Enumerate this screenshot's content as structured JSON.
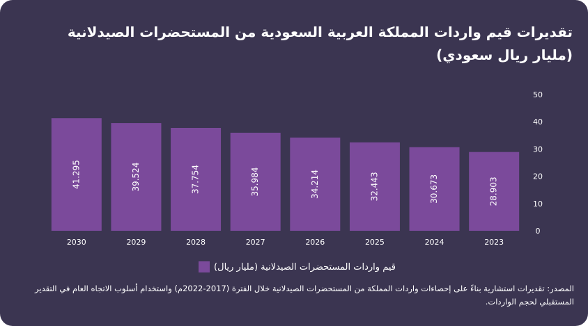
{
  "title": "تقديرات قيم واردات المملكة العربية السعودية من المستحضرات الصيدلانية (مليار ريال سعودي)",
  "source_note": "المصدر: تقديرات استشارية بناءً على إحصاءات واردات المملكة من المستحضرات الصيدلانية خلال الفترة (2017-2022م) واستخدام أسلوب الاتجاه العام في التقدير المستقبلي لحجم الواردات.",
  "colors": {
    "background": "#3b3551",
    "bar": "#7b4a9b",
    "text": "#ffffff"
  },
  "chart_data": {
    "type": "bar",
    "title": "تقديرات قيم واردات المملكة العربية السعودية من المستحضرات الصيدلانية (مليار ريال سعودي)",
    "categories": [
      "2030",
      "2029",
      "2028",
      "2027",
      "2026",
      "2025",
      "2024",
      "2023"
    ],
    "series": [
      {
        "name": "قيم واردات المستحضرات الصيدلانية (مليار ريال)",
        "values": [
          41.295,
          39.524,
          37.754,
          35.984,
          34.214,
          32.443,
          30.673,
          28.903
        ]
      }
    ],
    "value_labels": [
      "41.295",
      "39.524",
      "37.754",
      "35.984",
      "34.214",
      "32.443",
      "30.673",
      "28.903"
    ],
    "y_ticks": [
      "0",
      "10",
      "20",
      "30",
      "40",
      "50"
    ],
    "ylim": [
      0,
      50
    ],
    "y_axis_side": "right",
    "grid": false,
    "legend_position": "bottom"
  }
}
